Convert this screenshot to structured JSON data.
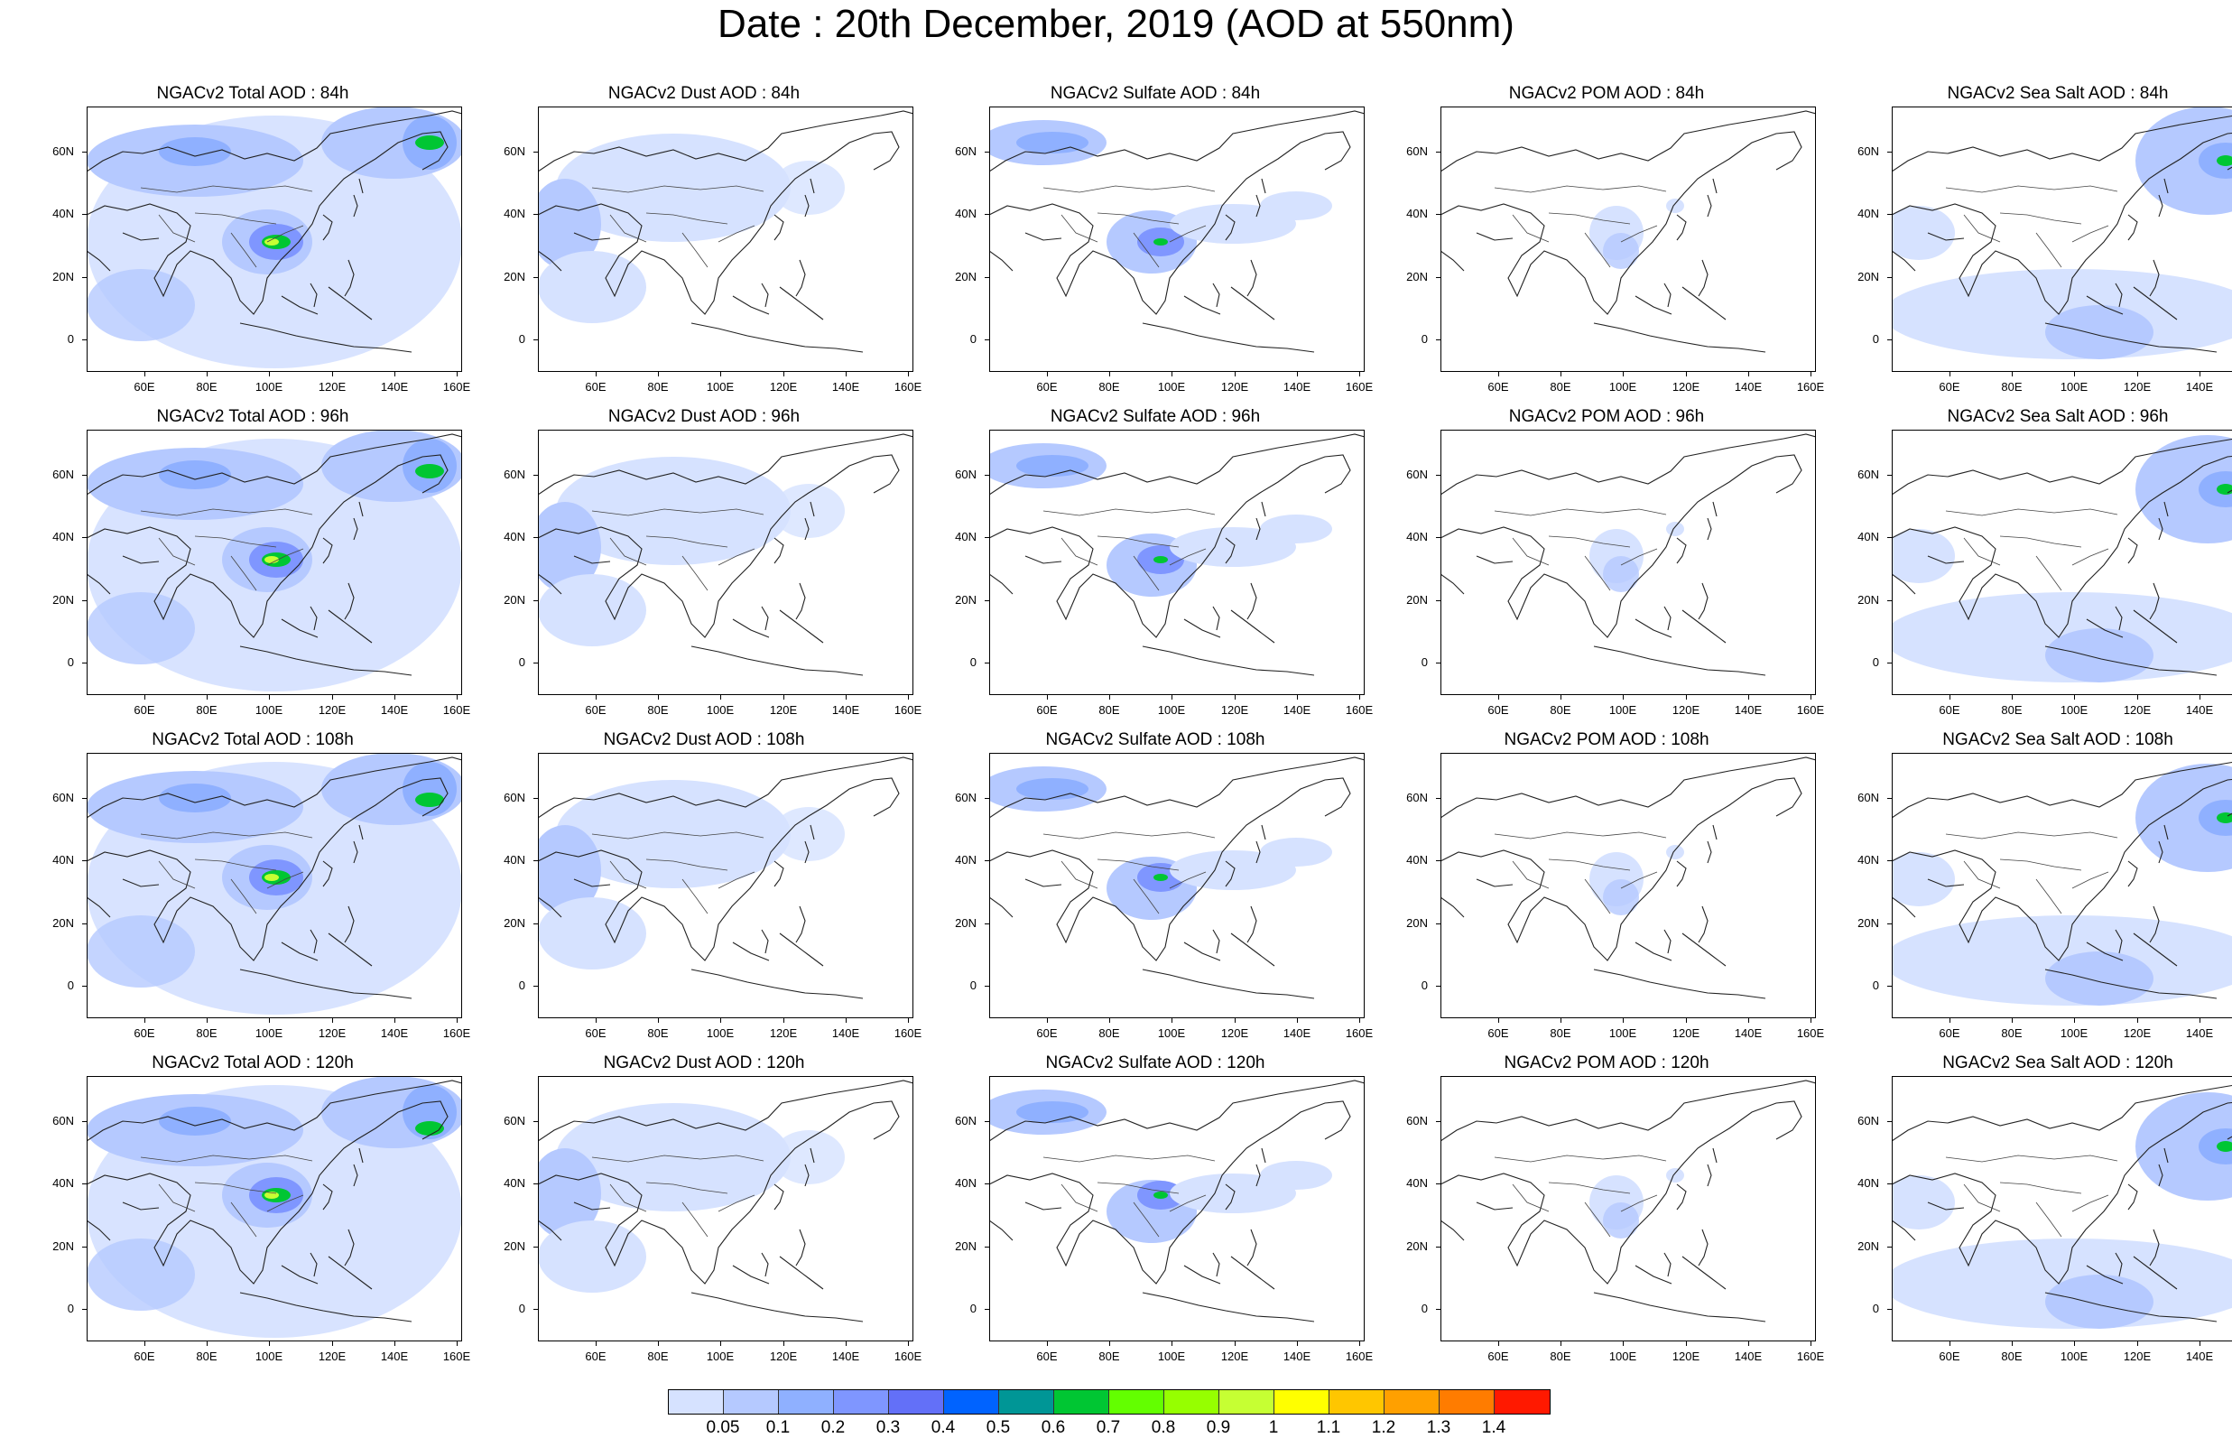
{
  "title": "Date : 20th December, 2019 (AOD at 550nm)",
  "panels": [
    [
      "NGACv2 Total AOD : 84h",
      "NGACv2 Dust AOD : 84h",
      "NGACv2 Sulfate AOD : 84h",
      "NGACv2 POM AOD : 84h",
      "NGACv2 Sea Salt AOD : 84h"
    ],
    [
      "NGACv2 Total AOD : 96h",
      "NGACv2 Dust AOD : 96h",
      "NGACv2 Sulfate AOD : 96h",
      "NGACv2 POM AOD : 96h",
      "NGACv2 Sea Salt AOD : 96h"
    ],
    [
      "NGACv2 Total AOD : 108h",
      "NGACv2 Dust AOD : 108h",
      "NGACv2 Sulfate AOD : 108h",
      "NGACv2 POM AOD : 108h",
      "NGACv2 Sea Salt AOD : 108h"
    ],
    [
      "NGACv2 Total AOD : 120h",
      "NGACv2 Dust AOD : 120h",
      "NGACv2 Sulfate AOD : 120h",
      "NGACv2 POM AOD : 120h",
      "NGACv2 Sea Salt  AOD : 120h"
    ]
  ],
  "x_ticks": [
    "60E",
    "80E",
    "100E",
    "120E",
    "140E",
    "160E"
  ],
  "y_ticks": [
    "60N",
    "40N",
    "20N",
    "0"
  ],
  "colorbar": {
    "labels": [
      "0.05",
      "0.1",
      "0.2",
      "0.3",
      "0.4",
      "0.5",
      "0.6",
      "0.7",
      "0.8",
      "0.9",
      "1",
      "1.1",
      "1.2",
      "1.3",
      "1.4"
    ],
    "colors": [
      "#ffffff",
      "#d6e2ff",
      "#b5c9ff",
      "#8fb0ff",
      "#7f96ff",
      "#6370f8",
      "#0063ff",
      "#009696",
      "#00c633",
      "#63ff00",
      "#96ff00",
      "#c6ff33",
      "#ffff00",
      "#ffc600",
      "#ffa000",
      "#ff7c00",
      "#ff1900"
    ]
  }
}
